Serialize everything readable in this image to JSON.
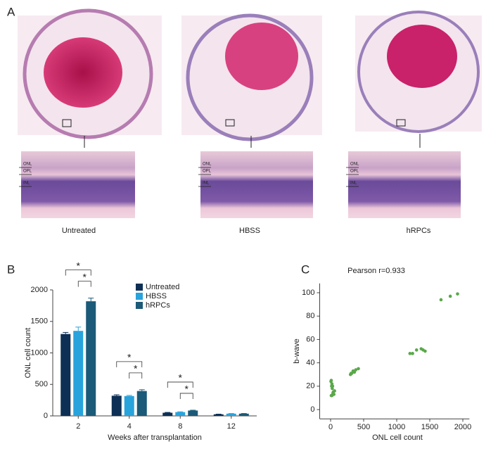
{
  "figure_a": {
    "panel_label": "A",
    "samples": [
      {
        "label": "Untreated",
        "layers": [
          "ONL",
          "OPL",
          "INL"
        ]
      },
      {
        "label": "HBSS",
        "layers": [
          "ONL",
          "OPL",
          "INL"
        ]
      },
      {
        "label": "hRPCs",
        "layers": [
          "ONL",
          "OPL",
          "INL"
        ]
      }
    ]
  },
  "chart_data": [
    {
      "type": "bar",
      "panel_label": "B",
      "x_label": "Weeks after transplantation",
      "y_label": "ONL cell count",
      "categories": [
        "2",
        "4",
        "8",
        "12"
      ],
      "series": [
        {
          "name": "Untreated",
          "color": "#0d2f55",
          "values": [
            1300,
            320,
            50,
            25
          ],
          "errors": [
            25,
            15,
            5,
            3
          ]
        },
        {
          "name": "HBSS",
          "color": "#29a3dc",
          "values": [
            1350,
            315,
            60,
            35
          ],
          "errors": [
            60,
            10,
            5,
            3
          ]
        },
        {
          "name": "hRPCs",
          "color": "#1b5a78",
          "values": [
            1820,
            395,
            85,
            35
          ],
          "errors": [
            50,
            20,
            5,
            3
          ]
        }
      ],
      "ylim": [
        0,
        2000
      ],
      "yticks": [
        0,
        500,
        1000,
        1500,
        2000
      ],
      "significance": [
        {
          "category": 0,
          "pair": [
            0,
            2
          ],
          "label": "*"
        },
        {
          "category": 0,
          "pair": [
            1,
            2
          ],
          "label": "*"
        },
        {
          "category": 1,
          "pair": [
            0,
            2
          ],
          "label": "*"
        },
        {
          "category": 1,
          "pair": [
            1,
            2
          ],
          "label": "*"
        },
        {
          "category": 2,
          "pair": [
            0,
            2
          ],
          "label": "*"
        },
        {
          "category": 2,
          "pair": [
            1,
            2
          ],
          "label": "*"
        }
      ]
    },
    {
      "type": "scatter",
      "panel_label": "C",
      "title": "Pearson r=0.933",
      "x_label": "ONL cell count",
      "y_label": "b-wave",
      "color": "#5aa84a",
      "x": [
        10,
        20,
        15,
        30,
        25,
        40,
        10,
        20,
        50,
        60,
        35,
        5,
        300,
        320,
        340,
        360,
        380,
        420,
        310,
        1200,
        1240,
        1300,
        1370,
        1400,
        1430,
        1670,
        1810,
        1920
      ],
      "y": [
        25,
        22,
        20,
        20,
        18,
        15,
        12,
        12,
        13,
        16,
        14,
        24,
        30,
        31,
        33,
        32,
        34,
        35,
        31,
        48,
        48,
        51,
        52,
        51,
        50,
        94,
        97,
        99
      ],
      "xlim": [
        -80,
        2100
      ],
      "xticks": [
        0,
        500,
        1000,
        1500,
        2000
      ],
      "ylim": [
        -8,
        108
      ],
      "yticks": [
        0,
        20,
        40,
        60,
        80,
        100
      ]
    }
  ]
}
